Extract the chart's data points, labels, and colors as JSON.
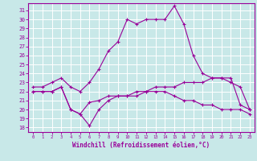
{
  "xlabel": "Windchill (Refroidissement éolien,°C)",
  "background_color": "#c8e8e8",
  "line_color": "#990099",
  "grid_color": "#ffffff",
  "xlim": [
    -0.5,
    23.5
  ],
  "ylim": [
    17.5,
    31.8
  ],
  "yticks": [
    18,
    19,
    20,
    21,
    22,
    23,
    24,
    25,
    26,
    27,
    28,
    29,
    30,
    31
  ],
  "xticks": [
    0,
    1,
    2,
    3,
    4,
    5,
    6,
    7,
    8,
    9,
    10,
    11,
    12,
    13,
    14,
    15,
    16,
    17,
    18,
    19,
    20,
    21,
    22,
    23
  ],
  "series1_x": [
    0,
    1,
    2,
    3,
    4,
    5,
    6,
    7,
    8,
    9,
    10,
    11,
    12,
    13,
    14,
    15,
    16,
    17,
    18,
    19,
    20,
    21,
    22,
    23
  ],
  "series1_y": [
    22.5,
    22.5,
    23.0,
    23.5,
    22.5,
    22.0,
    23.0,
    24.5,
    26.5,
    27.5,
    30.0,
    29.5,
    30.0,
    30.0,
    30.0,
    31.5,
    29.5,
    26.0,
    24.0,
    23.5,
    23.5,
    23.0,
    22.5,
    20.0
  ],
  "series2_x": [
    0,
    1,
    2,
    3,
    4,
    5,
    6,
    7,
    8,
    9,
    10,
    11,
    12,
    13,
    14,
    15,
    16,
    17,
    18,
    19,
    20,
    21,
    22,
    23
  ],
  "series2_y": [
    22.0,
    22.0,
    22.0,
    22.5,
    20.0,
    19.5,
    20.8,
    21.0,
    21.5,
    21.5,
    21.5,
    21.5,
    22.0,
    22.0,
    22.0,
    21.5,
    21.0,
    21.0,
    20.5,
    20.5,
    20.0,
    20.0,
    20.0,
    19.5
  ],
  "series3_x": [
    0,
    1,
    2,
    3,
    4,
    5,
    6,
    7,
    8,
    9,
    10,
    11,
    12,
    13,
    14,
    15,
    16,
    17,
    18,
    19,
    20,
    21,
    22,
    23
  ],
  "series3_y": [
    22.0,
    22.0,
    22.0,
    22.5,
    20.0,
    19.5,
    18.2,
    20.0,
    21.0,
    21.5,
    21.5,
    22.0,
    22.0,
    22.5,
    22.5,
    22.5,
    23.0,
    23.0,
    23.0,
    23.5,
    23.5,
    23.5,
    20.5,
    20.0
  ]
}
